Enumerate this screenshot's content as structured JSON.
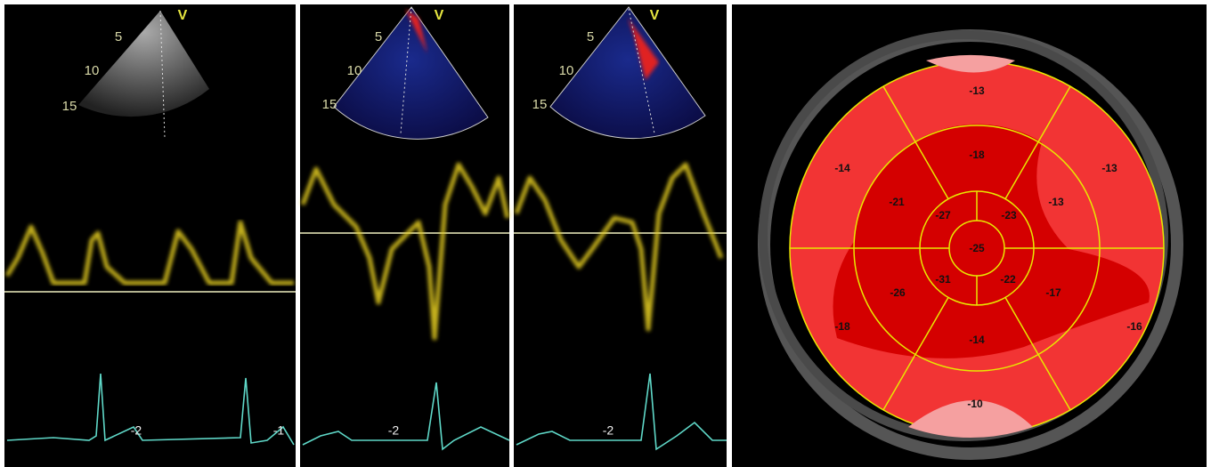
{
  "panels": [
    {
      "depth_labels": [
        "5",
        "10",
        "15"
      ],
      "view_label": "V",
      "ecg_labels": [
        "-2",
        "-1"
      ]
    },
    {
      "depth_labels": [
        "5",
        "10",
        "15"
      ],
      "view_label": "V",
      "ecg_labels": [
        "-2"
      ]
    },
    {
      "depth_labels": [
        "5",
        "10",
        "15"
      ],
      "view_label": "V",
      "ecg_labels": [
        "-2"
      ]
    }
  ],
  "bullseye": {
    "apex": "-25",
    "apical": [
      "-27",
      "-23",
      "-22",
      "-31"
    ],
    "mid": [
      "-18",
      "-13",
      "-17",
      "-14",
      "-26",
      "-21"
    ],
    "basal": [
      "-13",
      "-13",
      "-16",
      "-10",
      "-18",
      "-14"
    ]
  }
}
